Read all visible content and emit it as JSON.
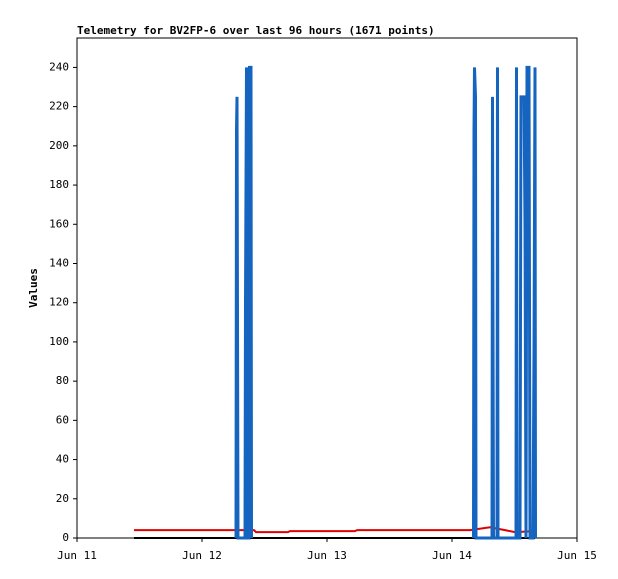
{
  "chart_data": {
    "type": "line",
    "title": "Telemetry for BV2FP-6 over last 96 hours (1671 points)",
    "y_label": "Values",
    "xlim": [
      0,
      4
    ],
    "ylim": [
      0,
      255
    ],
    "xticks": [
      {
        "value": 0,
        "label": "Jun 11"
      },
      {
        "value": 1,
        "label": "Jun 12"
      },
      {
        "value": 2,
        "label": "Jun 13"
      },
      {
        "value": 3,
        "label": "Jun 14"
      },
      {
        "value": 4,
        "label": "Jun 15"
      }
    ],
    "yticks": [
      0,
      20,
      40,
      60,
      80,
      100,
      120,
      140,
      160,
      180,
      200,
      220,
      240
    ],
    "series": [
      {
        "color": "#000000",
        "x": [
          0.456,
          3.664
        ],
        "values": [
          0,
          0
        ]
      },
      {
        "color": "#e00000",
        "x": [
          0.456,
          1.416,
          1.432,
          1.688,
          1.704,
          2.224,
          2.24,
          3.144,
          3.304,
          3.424,
          3.504,
          3.664
        ],
        "values": [
          4,
          4,
          3,
          3,
          3.5,
          3.5,
          4,
          4,
          5.5,
          4,
          3,
          3.5
        ]
      },
      {
        "color": "#1565c0",
        "x": [
          1.272,
          1.276,
          1.28,
          1.288,
          1.344,
          1.348,
          1.356,
          1.364,
          1.376,
          1.38,
          1.392,
          1.396,
          2.0,
          3.172,
          3.176,
          3.18,
          3.188,
          3.192,
          3.32,
          3.324,
          3.328,
          3.332,
          3.36,
          3.364,
          3.368,
          3.512,
          3.516,
          3.52,
          3.544,
          3.552,
          3.56,
          3.576,
          3.584,
          3.592,
          3.6,
          3.616,
          3.624,
          3.648,
          3.652,
          3.656,
          3.664,
          3.668
        ],
        "values": [
          0,
          208,
          225,
          0,
          0,
          120,
          240,
          0,
          0,
          240,
          240,
          0,
          null,
          0,
          208,
          240,
          225,
          0,
          0,
          225,
          112,
          0,
          0,
          240,
          0,
          0,
          240,
          0,
          0,
          225,
          225,
          225,
          160,
          0,
          240,
          240,
          0,
          0,
          48,
          97,
          240,
          0
        ]
      }
    ]
  }
}
